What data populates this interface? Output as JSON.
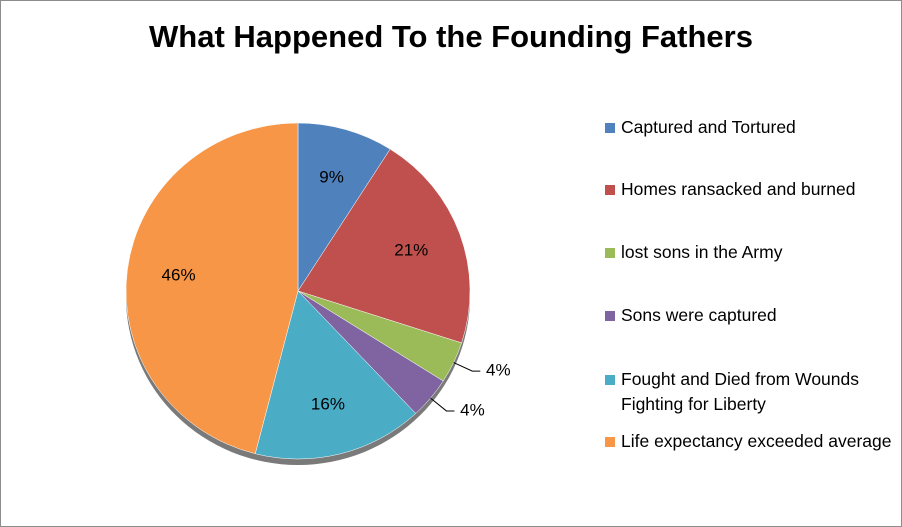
{
  "chart_data": {
    "type": "pie",
    "title": "What Happened To the Founding Fathers",
    "categories": [
      "Captured and Tortured",
      "Homes ransacked and burned",
      "lost sons in the Army",
      "Sons were captured",
      "Fought and Died from Wounds Fighting for Liberty",
      "Life expectancy exceeded average"
    ],
    "values": [
      9,
      21,
      4,
      4,
      16,
      46
    ],
    "value_labels": [
      "9%",
      "21%",
      "4%",
      "4%",
      "16%",
      "46%"
    ],
    "colors": [
      "#4f81bd",
      "#c0504d",
      "#9bbb59",
      "#8064a2",
      "#4bacc6",
      "#f79646"
    ],
    "legend": "right"
  }
}
